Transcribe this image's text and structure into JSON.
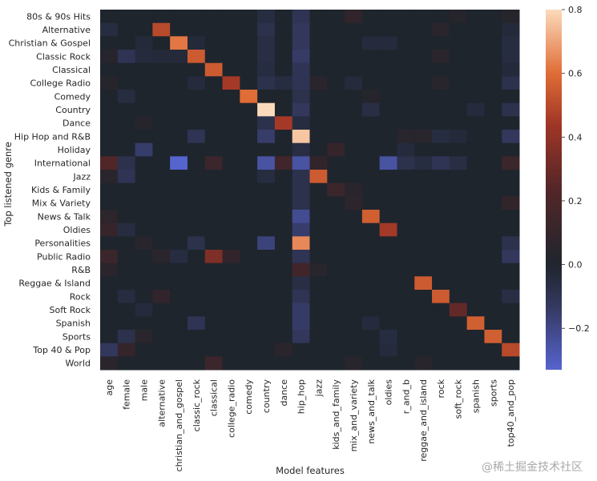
{
  "chart_data": {
    "type": "heatmap",
    "title": "",
    "xlabel": "Model features",
    "ylabel": "Top listened genre",
    "x_categories": [
      "age",
      "female",
      "male",
      "alternative",
      "christian_and_gospel",
      "classic_rock",
      "classical",
      "college_radio",
      "comedy",
      "country",
      "dance",
      "hip_hop",
      "jazz",
      "kids_and_family",
      "mix_and_variety",
      "news_and_talk",
      "oldies",
      "r_and_b",
      "reggae_and_island",
      "rock",
      "soft_rock",
      "spanish",
      "sports",
      "top40_and_pop"
    ],
    "y_categories": [
      "80s & 90s Hits",
      "Alternative",
      "Christian & Gospel",
      "Classic Rock",
      "Classical",
      "College Radio",
      "Comedy",
      "Country",
      "Dance",
      "Hip Hop and R&B",
      "Holiday",
      "International",
      "Jazz",
      "Kids & Family",
      "Mix & Variety",
      "News & Talk",
      "Oldies",
      "Personalities",
      "Public Radio",
      "R&B",
      "Reggae & Island",
      "Rock",
      "Soft Rock",
      "Spanish",
      "Sports",
      "Top 40 & Pop",
      "World"
    ],
    "vmin": -0.33,
    "vmax": 0.8,
    "colorbar_ticks": [
      0.8,
      0.6,
      0.4,
      0.2,
      0.0,
      -0.2
    ],
    "colorbar_tick_labels": [
      "0.8",
      "0.6",
      "0.4",
      "0.2",
      "0.0",
      "−0.2"
    ],
    "colormap": "icefire (centered at 0)",
    "cells": [
      {
        "row": 0,
        "col": 9,
        "value": -0.05
      },
      {
        "row": 0,
        "col": 11,
        "value": -0.1
      },
      {
        "row": 0,
        "col": 14,
        "value": 0.08
      },
      {
        "row": 0,
        "col": 20,
        "value": 0.03
      },
      {
        "row": 0,
        "col": 23,
        "value": 0.03
      },
      {
        "row": 1,
        "col": 0,
        "value": -0.05
      },
      {
        "row": 1,
        "col": 3,
        "value": 0.5
      },
      {
        "row": 1,
        "col": 9,
        "value": -0.08
      },
      {
        "row": 1,
        "col": 11,
        "value": -0.12
      },
      {
        "row": 1,
        "col": 19,
        "value": 0.05
      },
      {
        "row": 1,
        "col": 23,
        "value": -0.03
      },
      {
        "row": 2,
        "col": 2,
        "value": -0.03
      },
      {
        "row": 2,
        "col": 4,
        "value": 0.62
      },
      {
        "row": 2,
        "col": 5,
        "value": -0.03
      },
      {
        "row": 2,
        "col": 9,
        "value": -0.06
      },
      {
        "row": 2,
        "col": 11,
        "value": -0.12
      },
      {
        "row": 2,
        "col": 15,
        "value": -0.04
      },
      {
        "row": 2,
        "col": 16,
        "value": -0.04
      },
      {
        "row": 2,
        "col": 23,
        "value": -0.05
      },
      {
        "row": 3,
        "col": 0,
        "value": 0.03
      },
      {
        "row": 3,
        "col": 1,
        "value": -0.1
      },
      {
        "row": 3,
        "col": 2,
        "value": -0.04
      },
      {
        "row": 3,
        "col": 3,
        "value": -0.03
      },
      {
        "row": 3,
        "col": 4,
        "value": -0.03
      },
      {
        "row": 3,
        "col": 5,
        "value": 0.55
      },
      {
        "row": 3,
        "col": 9,
        "value": -0.06
      },
      {
        "row": 3,
        "col": 11,
        "value": -0.14
      },
      {
        "row": 3,
        "col": 19,
        "value": 0.05
      },
      {
        "row": 3,
        "col": 23,
        "value": -0.05
      },
      {
        "row": 4,
        "col": 6,
        "value": 0.55
      },
      {
        "row": 4,
        "col": 9,
        "value": -0.05
      },
      {
        "row": 4,
        "col": 11,
        "value": -0.1
      },
      {
        "row": 4,
        "col": 23,
        "value": -0.03
      },
      {
        "row": 5,
        "col": 0,
        "value": 0.03
      },
      {
        "row": 5,
        "col": 5,
        "value": -0.04
      },
      {
        "row": 5,
        "col": 7,
        "value": 0.45
      },
      {
        "row": 5,
        "col": 9,
        "value": -0.08
      },
      {
        "row": 5,
        "col": 10,
        "value": -0.05
      },
      {
        "row": 5,
        "col": 11,
        "value": -0.1
      },
      {
        "row": 5,
        "col": 12,
        "value": 0.05
      },
      {
        "row": 5,
        "col": 14,
        "value": -0.04
      },
      {
        "row": 5,
        "col": 19,
        "value": 0.04
      },
      {
        "row": 5,
        "col": 23,
        "value": -0.08
      },
      {
        "row": 6,
        "col": 1,
        "value": -0.05
      },
      {
        "row": 6,
        "col": 8,
        "value": 0.6
      },
      {
        "row": 6,
        "col": 11,
        "value": -0.08
      },
      {
        "row": 6,
        "col": 15,
        "value": 0.03
      },
      {
        "row": 7,
        "col": 9,
        "value": 0.8
      },
      {
        "row": 7,
        "col": 11,
        "value": -0.12
      },
      {
        "row": 7,
        "col": 15,
        "value": -0.06
      },
      {
        "row": 7,
        "col": 21,
        "value": -0.04
      },
      {
        "row": 7,
        "col": 23,
        "value": -0.08
      },
      {
        "row": 8,
        "col": 2,
        "value": 0.03
      },
      {
        "row": 8,
        "col": 9,
        "value": -0.08
      },
      {
        "row": 8,
        "col": 10,
        "value": 0.45
      },
      {
        "row": 8,
        "col": 11,
        "value": -0.05
      },
      {
        "row": 9,
        "col": 5,
        "value": -0.1
      },
      {
        "row": 9,
        "col": 9,
        "value": -0.15
      },
      {
        "row": 9,
        "col": 11,
        "value": 0.76
      },
      {
        "row": 9,
        "col": 17,
        "value": 0.04
      },
      {
        "row": 9,
        "col": 18,
        "value": 0.04
      },
      {
        "row": 9,
        "col": 19,
        "value": -0.05
      },
      {
        "row": 9,
        "col": 20,
        "value": -0.03
      },
      {
        "row": 9,
        "col": 23,
        "value": -0.12
      },
      {
        "row": 10,
        "col": 2,
        "value": -0.15
      },
      {
        "row": 10,
        "col": 11,
        "value": -0.06
      },
      {
        "row": 10,
        "col": 13,
        "value": 0.1
      },
      {
        "row": 10,
        "col": 17,
        "value": -0.04
      },
      {
        "row": 11,
        "col": 0,
        "value": 0.22
      },
      {
        "row": 11,
        "col": 1,
        "value": -0.08
      },
      {
        "row": 11,
        "col": 4,
        "value": -0.33
      },
      {
        "row": 11,
        "col": 6,
        "value": 0.12
      },
      {
        "row": 11,
        "col": 9,
        "value": -0.25
      },
      {
        "row": 11,
        "col": 10,
        "value": 0.15
      },
      {
        "row": 11,
        "col": 11,
        "value": -0.25
      },
      {
        "row": 11,
        "col": 12,
        "value": 0.08
      },
      {
        "row": 11,
        "col": 16,
        "value": -0.25
      },
      {
        "row": 11,
        "col": 17,
        "value": -0.08
      },
      {
        "row": 11,
        "col": 18,
        "value": -0.05
      },
      {
        "row": 11,
        "col": 19,
        "value": -0.1
      },
      {
        "row": 11,
        "col": 20,
        "value": -0.06
      },
      {
        "row": 11,
        "col": 23,
        "value": 0.12
      },
      {
        "row": 12,
        "col": 0,
        "value": 0.05
      },
      {
        "row": 12,
        "col": 1,
        "value": -0.1
      },
      {
        "row": 12,
        "col": 9,
        "value": -0.05
      },
      {
        "row": 12,
        "col": 11,
        "value": -0.08
      },
      {
        "row": 12,
        "col": 12,
        "value": 0.55
      },
      {
        "row": 13,
        "col": 11,
        "value": -0.08
      },
      {
        "row": 13,
        "col": 13,
        "value": 0.12
      },
      {
        "row": 13,
        "col": 14,
        "value": 0.05
      },
      {
        "row": 14,
        "col": 11,
        "value": -0.08
      },
      {
        "row": 14,
        "col": 14,
        "value": 0.06
      },
      {
        "row": 14,
        "col": 23,
        "value": 0.08
      },
      {
        "row": 15,
        "col": 0,
        "value": 0.06
      },
      {
        "row": 15,
        "col": 11,
        "value": -0.22
      },
      {
        "row": 15,
        "col": 15,
        "value": 0.56
      },
      {
        "row": 16,
        "col": 0,
        "value": 0.1
      },
      {
        "row": 16,
        "col": 1,
        "value": -0.05
      },
      {
        "row": 16,
        "col": 11,
        "value": -0.15
      },
      {
        "row": 16,
        "col": 16,
        "value": 0.45
      },
      {
        "row": 17,
        "col": 2,
        "value": 0.04
      },
      {
        "row": 17,
        "col": 5,
        "value": -0.08
      },
      {
        "row": 17,
        "col": 9,
        "value": -0.18
      },
      {
        "row": 17,
        "col": 11,
        "value": 0.65
      },
      {
        "row": 17,
        "col": 23,
        "value": -0.08
      },
      {
        "row": 18,
        "col": 0,
        "value": 0.12
      },
      {
        "row": 18,
        "col": 3,
        "value": 0.05
      },
      {
        "row": 18,
        "col": 4,
        "value": -0.05
      },
      {
        "row": 18,
        "col": 6,
        "value": 0.35
      },
      {
        "row": 18,
        "col": 7,
        "value": 0.08
      },
      {
        "row": 18,
        "col": 11,
        "value": -0.1
      },
      {
        "row": 18,
        "col": 23,
        "value": -0.12
      },
      {
        "row": 19,
        "col": 0,
        "value": 0.05
      },
      {
        "row": 19,
        "col": 11,
        "value": 0.15
      },
      {
        "row": 19,
        "col": 12,
        "value": 0.04
      },
      {
        "row": 20,
        "col": 11,
        "value": -0.06
      },
      {
        "row": 20,
        "col": 18,
        "value": 0.55
      },
      {
        "row": 21,
        "col": 1,
        "value": -0.05
      },
      {
        "row": 21,
        "col": 3,
        "value": 0.08
      },
      {
        "row": 21,
        "col": 11,
        "value": -0.1
      },
      {
        "row": 21,
        "col": 19,
        "value": 0.55
      },
      {
        "row": 21,
        "col": 23,
        "value": -0.06
      },
      {
        "row": 22,
        "col": 2,
        "value": -0.04
      },
      {
        "row": 22,
        "col": 11,
        "value": -0.14
      },
      {
        "row": 22,
        "col": 20,
        "value": 0.28
      },
      {
        "row": 23,
        "col": 5,
        "value": -0.1
      },
      {
        "row": 23,
        "col": 11,
        "value": -0.14
      },
      {
        "row": 23,
        "col": 15,
        "value": -0.04
      },
      {
        "row": 23,
        "col": 21,
        "value": 0.56
      },
      {
        "row": 24,
        "col": 1,
        "value": -0.08
      },
      {
        "row": 24,
        "col": 2,
        "value": 0.05
      },
      {
        "row": 24,
        "col": 11,
        "value": -0.12
      },
      {
        "row": 24,
        "col": 16,
        "value": -0.05
      },
      {
        "row": 24,
        "col": 22,
        "value": 0.56
      },
      {
        "row": 25,
        "col": 0,
        "value": -0.12
      },
      {
        "row": 25,
        "col": 1,
        "value": 0.1
      },
      {
        "row": 25,
        "col": 10,
        "value": 0.05
      },
      {
        "row": 25,
        "col": 16,
        "value": -0.04
      },
      {
        "row": 25,
        "col": 23,
        "value": 0.5
      },
      {
        "row": 26,
        "col": 0,
        "value": 0.05
      },
      {
        "row": 26,
        "col": 6,
        "value": 0.12
      },
      {
        "row": 26,
        "col": 14,
        "value": 0.04
      },
      {
        "row": 26,
        "col": 18,
        "value": 0.04
      }
    ]
  },
  "watermark": "@稀土掘金技术社区"
}
